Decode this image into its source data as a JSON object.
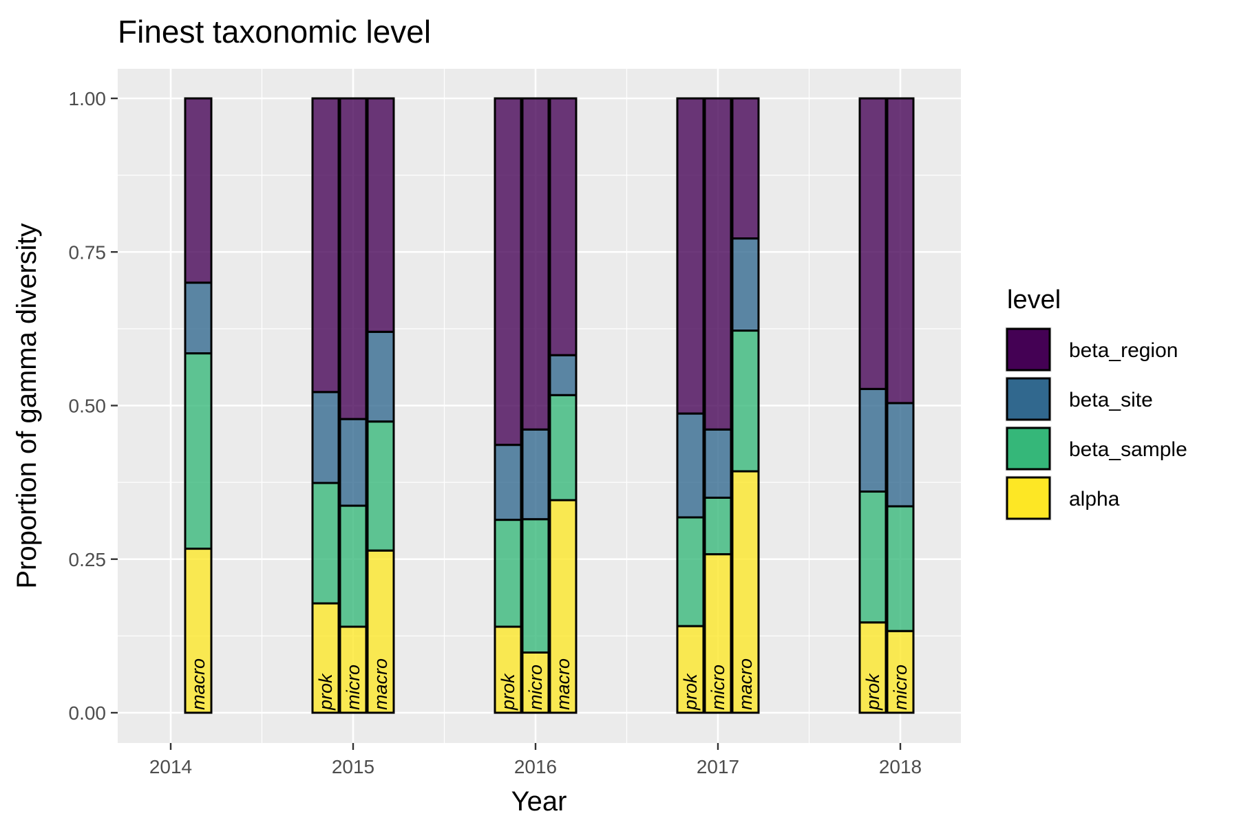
{
  "chart_data": {
    "type": "bar",
    "stacked": true,
    "title": "Finest taxonomic level",
    "xlabel": "Year",
    "ylabel": "Proportion of gamma diversity",
    "x_ticks": [
      "2014",
      "2015",
      "2016",
      "2017",
      "2018"
    ],
    "y_ticks": [
      "0.00",
      "0.25",
      "0.50",
      "0.75",
      "1.00"
    ],
    "ylim": [
      0,
      1
    ],
    "grid": true,
    "legend": {
      "title": "level",
      "position": "right",
      "entries": [
        "beta_region",
        "beta_site",
        "beta_sample",
        "alpha"
      ]
    },
    "colors": {
      "alpha": "#FDE725",
      "beta_sample": "#35B779",
      "beta_site": "#31688E",
      "beta_region": "#440154"
    },
    "groups": [
      {
        "year": "2014",
        "bars": [
          {
            "label": "macro",
            "slot": 1,
            "alpha": 0.267,
            "beta_sample": 0.318,
            "beta_site": 0.115,
            "beta_region": 0.3
          }
        ]
      },
      {
        "year": "2015",
        "bars": [
          {
            "label": "prok",
            "slot": -1,
            "alpha": 0.178,
            "beta_sample": 0.196,
            "beta_site": 0.148,
            "beta_region": 0.478
          },
          {
            "label": "micro",
            "slot": 0,
            "alpha": 0.14,
            "beta_sample": 0.197,
            "beta_site": 0.141,
            "beta_region": 0.522
          },
          {
            "label": "macro",
            "slot": 1,
            "alpha": 0.264,
            "beta_sample": 0.21,
            "beta_site": 0.146,
            "beta_region": 0.38
          }
        ]
      },
      {
        "year": "2016",
        "bars": [
          {
            "label": "prok",
            "slot": -1,
            "alpha": 0.14,
            "beta_sample": 0.174,
            "beta_site": 0.122,
            "beta_region": 0.564
          },
          {
            "label": "micro",
            "slot": 0,
            "alpha": 0.098,
            "beta_sample": 0.217,
            "beta_site": 0.146,
            "beta_region": 0.539
          },
          {
            "label": "macro",
            "slot": 1,
            "alpha": 0.346,
            "beta_sample": 0.171,
            "beta_site": 0.065,
            "beta_region": 0.418
          }
        ]
      },
      {
        "year": "2017",
        "bars": [
          {
            "label": "prok",
            "slot": -1,
            "alpha": 0.141,
            "beta_sample": 0.177,
            "beta_site": 0.169,
            "beta_region": 0.513
          },
          {
            "label": "micro",
            "slot": 0,
            "alpha": 0.258,
            "beta_sample": 0.092,
            "beta_site": 0.111,
            "beta_region": 0.539
          },
          {
            "label": "macro",
            "slot": 1,
            "alpha": 0.393,
            "beta_sample": 0.229,
            "beta_site": 0.15,
            "beta_region": 0.228
          }
        ]
      },
      {
        "year": "2018",
        "bars": [
          {
            "label": "prok",
            "slot": -1,
            "alpha": 0.147,
            "beta_sample": 0.213,
            "beta_site": 0.167,
            "beta_region": 0.473
          },
          {
            "label": "micro",
            "slot": 0,
            "alpha": 0.133,
            "beta_sample": 0.203,
            "beta_site": 0.168,
            "beta_region": 0.496
          }
        ]
      }
    ]
  }
}
